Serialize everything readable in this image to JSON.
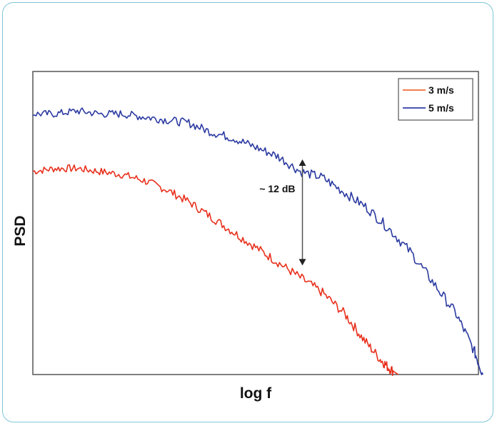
{
  "chart_data": {
    "type": "line",
    "title": "",
    "xlabel": "log f",
    "ylabel": "PSD",
    "xlim": [
      0,
      1
    ],
    "ylim": [
      0,
      1
    ],
    "x_ticks": [],
    "y_ticks": [],
    "grid": false,
    "legend_position": "top-right",
    "series": [
      {
        "name": "3 m/s",
        "color": "#e8301c",
        "legend_color": "#f08050",
        "x": [
          0.0,
          0.05,
          0.1,
          0.15,
          0.2,
          0.25,
          0.3,
          0.35,
          0.4,
          0.45,
          0.5,
          0.55,
          0.6,
          0.65,
          0.7,
          0.74,
          0.78,
          0.8,
          0.82
        ],
        "y": [
          0.67,
          0.68,
          0.68,
          0.67,
          0.66,
          0.64,
          0.61,
          0.57,
          0.52,
          0.47,
          0.42,
          0.37,
          0.32,
          0.27,
          0.2,
          0.12,
          0.05,
          0.02,
          0.0
        ]
      },
      {
        "name": "5 m/s",
        "color": "#2b3aa0",
        "legend_color": "#4a54b2",
        "x": [
          0.0,
          0.05,
          0.1,
          0.15,
          0.2,
          0.25,
          0.3,
          0.35,
          0.4,
          0.45,
          0.5,
          0.55,
          0.6,
          0.65,
          0.7,
          0.75,
          0.8,
          0.85,
          0.9,
          0.95,
          0.99,
          1.01
        ],
        "y": [
          0.86,
          0.86,
          0.87,
          0.86,
          0.86,
          0.85,
          0.84,
          0.83,
          0.8,
          0.78,
          0.75,
          0.72,
          0.67,
          0.65,
          0.6,
          0.55,
          0.48,
          0.4,
          0.3,
          0.2,
          0.08,
          0.0
        ]
      }
    ],
    "annotations": [
      {
        "text": "~ 12 dB",
        "x": 0.605,
        "y_top": 0.71,
        "y_bottom": 0.36
      }
    ]
  }
}
